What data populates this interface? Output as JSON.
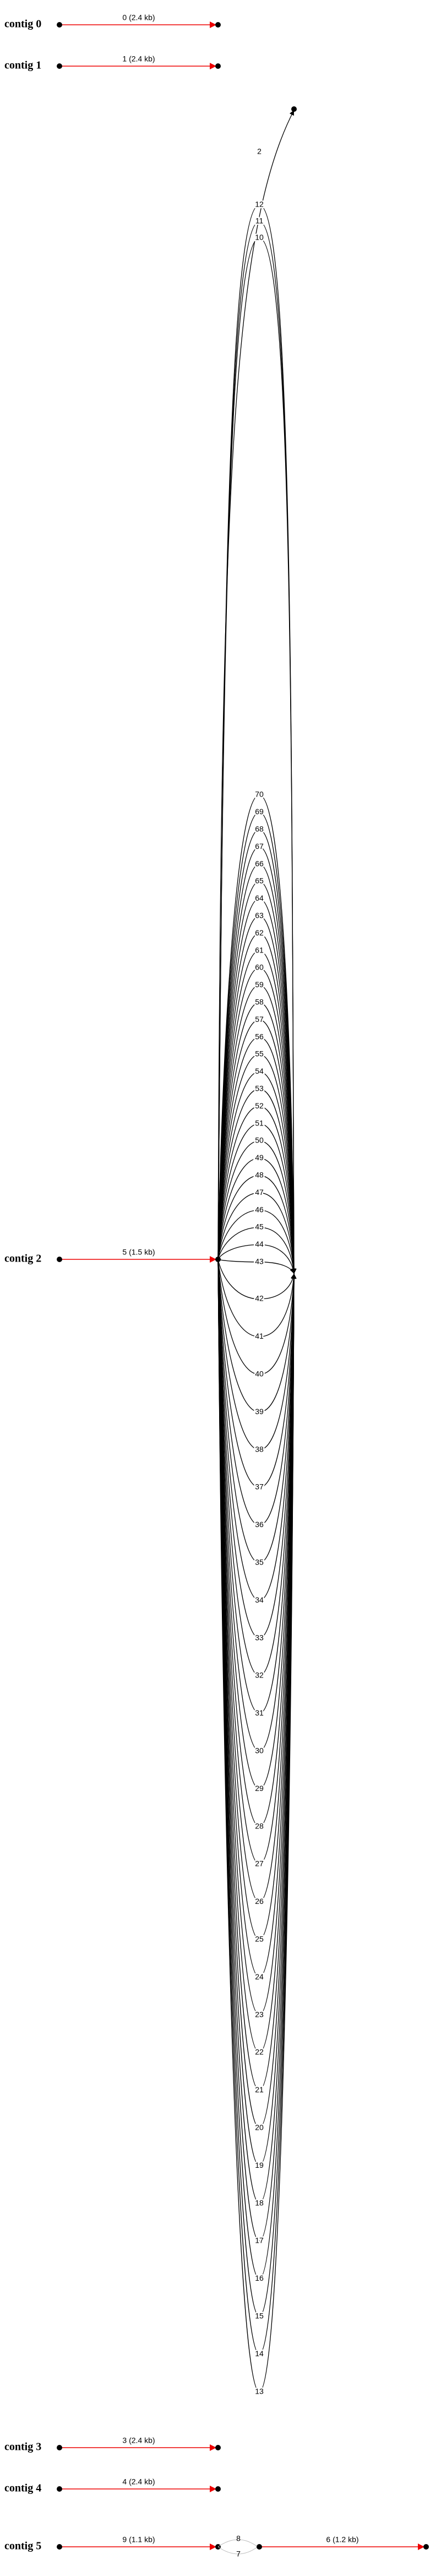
{
  "contigs": [
    {
      "label": "contig 0",
      "edge": "0 (2.4 kb)"
    },
    {
      "label": "contig 1",
      "edge": "1 (2.4 kb)"
    },
    {
      "label": "contig 2",
      "edge": "5 (1.5 kb)"
    },
    {
      "label": "contig 3",
      "edge": "3 (2.4 kb)"
    },
    {
      "label": "contig 4",
      "edge": "4 (2.4 kb)"
    },
    {
      "label": "contig 5",
      "edge": "9 (1.1 kb)"
    }
  ],
  "contig5_extra": {
    "loop_top": "8",
    "loop_bottom": "7",
    "edge": "6 (1.2 kb)"
  },
  "branch_edge": "2",
  "loops_top": [
    "12",
    "11",
    "10"
  ],
  "loops_middle": [
    "70",
    "69",
    "68",
    "67",
    "66",
    "65",
    "64",
    "63",
    "62",
    "61",
    "60",
    "59",
    "58",
    "57",
    "56",
    "55",
    "54",
    "53",
    "52",
    "51",
    "50",
    "49",
    "48",
    "47",
    "46",
    "45",
    "44",
    "43"
  ],
  "loops_bottom": [
    "42",
    "41",
    "40",
    "39",
    "38",
    "37",
    "36",
    "35",
    "34",
    "33",
    "32",
    "31",
    "30",
    "29",
    "28",
    "27",
    "26",
    "25",
    "24",
    "23",
    "22",
    "21",
    "20",
    "19",
    "18",
    "17",
    "16",
    "15",
    "14",
    "13"
  ]
}
